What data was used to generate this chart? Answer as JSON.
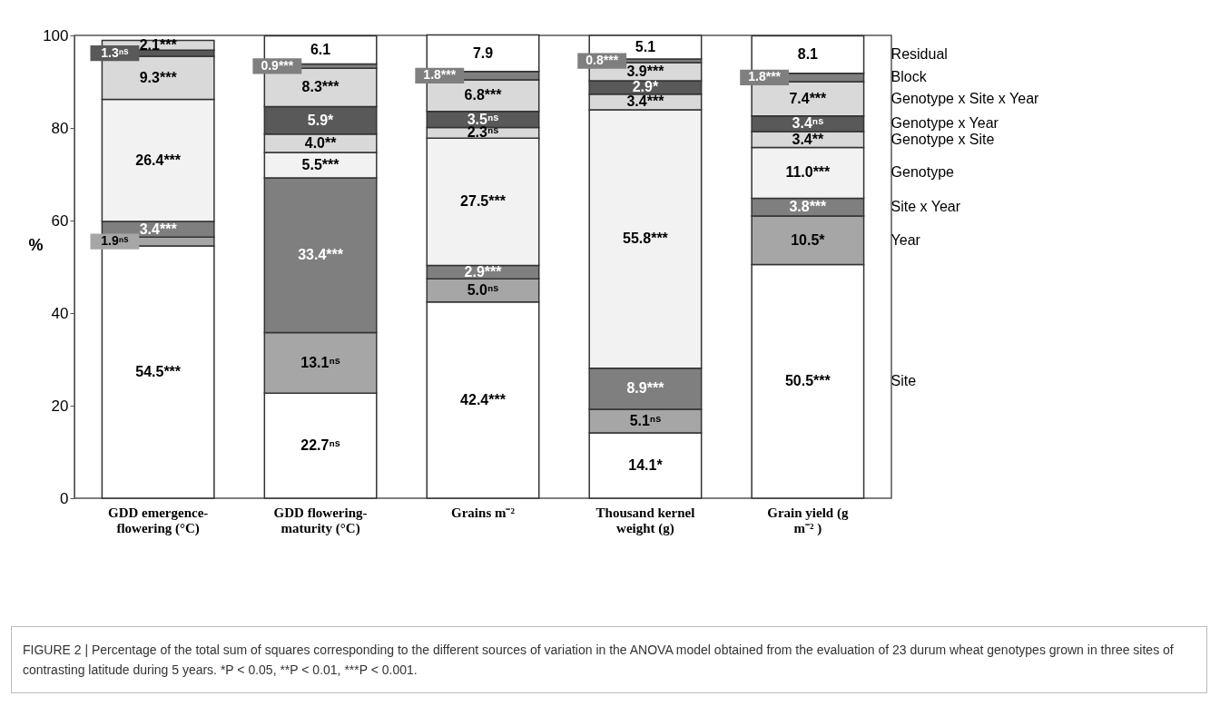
{
  "chart_data": {
    "type": "bar",
    "stacked": true,
    "categories": [
      "GDD emergence-flowering (°C)",
      "GDD flowering-maturity (°C)",
      "Grains m⁻²",
      "Thousand kernel weight (g)",
      "Grain yield (g m⁻² )"
    ],
    "ylabel": "%",
    "ylim": [
      0,
      100
    ],
    "yticks": [
      0,
      20,
      40,
      60,
      80,
      100
    ],
    "grid": false,
    "legend": false,
    "series": [
      {
        "name": "Site",
        "color": "#ffffff",
        "values": [
          54.5,
          22.7,
          42.4,
          14.1,
          50.5
        ],
        "value_labels": [
          "54.5***",
          "22.7ⁿˢ",
          "42.4***",
          "14.1*",
          "50.5***"
        ]
      },
      {
        "name": "Year",
        "color": "#a6a6a6",
        "values": [
          1.9,
          13.1,
          5.0,
          5.1,
          10.5
        ],
        "value_labels": [
          "1.9ⁿˢ",
          "13.1ⁿˢ",
          "5.0ⁿˢ",
          "5.1ⁿˢ",
          "10.5*"
        ]
      },
      {
        "name": "Site x Year",
        "color": "#7f7f7f",
        "values": [
          3.4,
          33.4,
          2.9,
          8.9,
          3.8
        ],
        "value_labels": [
          "3.4***",
          "33.4***",
          "2.9***",
          "8.9***",
          "3.8***"
        ]
      },
      {
        "name": "Genotype",
        "color": "#f2f2f2",
        "values": [
          26.4,
          5.5,
          27.5,
          55.8,
          11.0
        ],
        "value_labels": [
          "26.4***",
          "5.5***",
          "27.5***",
          "55.8***",
          "11.0***"
        ]
      },
      {
        "name": "Genotype x Site",
        "color": "#d9d9d9",
        "values": [
          9.3,
          4.0,
          2.3,
          3.4,
          3.4
        ],
        "value_labels": [
          "9.3***",
          "4.0**",
          "2.3ⁿˢ",
          "3.4***",
          "3.4**"
        ]
      },
      {
        "name": "Genotype x Year",
        "color": "#595959",
        "values": [
          1.3,
          5.9,
          3.5,
          2.9,
          3.4
        ],
        "value_labels": [
          "1.3ⁿˢ",
          "5.9*",
          "3.5ⁿˢ",
          "2.9*",
          "3.4ⁿˢ"
        ]
      },
      {
        "name": "Genotype x Site x Year",
        "color": "#d9d9d9",
        "values": [
          2.1,
          8.3,
          6.8,
          3.9,
          7.4
        ],
        "value_labels": [
          "2.1***",
          "8.3***",
          "6.8***",
          "3.9***",
          "7.4***"
        ]
      },
      {
        "name": "Block",
        "color": "#7f7f7f",
        "values": [
          null,
          0.9,
          1.8,
          0.8,
          1.8
        ],
        "value_labels": [
          null,
          "0.9***",
          "1.8***",
          "0.8***",
          "1.8***"
        ]
      },
      {
        "name": "Residual",
        "color": "#ffffff",
        "values": [
          null,
          6.1,
          7.9,
          5.1,
          8.1
        ],
        "value_labels": [
          null,
          "6.1",
          "7.9",
          "5.1",
          "8.1"
        ]
      }
    ],
    "annotations": [
      "FIGURE 2 | Percentage of the total sum of squares corresponding to the different sources of variation in the ANOVA model obtained from the evaluation of 23 durum wheat genotypes grown in three sites of contrasting latitude during 5 years. *P < 0.05, **P < 0.01, ***P < 0.001."
    ]
  }
}
